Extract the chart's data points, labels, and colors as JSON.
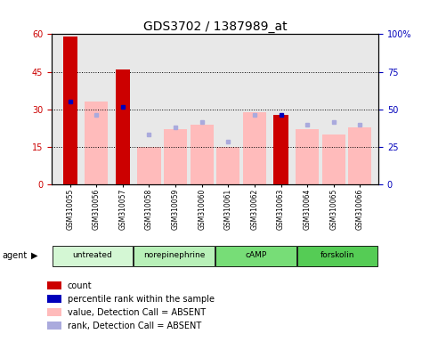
{
  "title": "GDS3702 / 1387989_at",
  "samples": [
    "GSM310055",
    "GSM310056",
    "GSM310057",
    "GSM310058",
    "GSM310059",
    "GSM310060",
    "GSM310061",
    "GSM310062",
    "GSM310063",
    "GSM310064",
    "GSM310065",
    "GSM310066"
  ],
  "count_values": [
    59,
    0,
    46,
    0,
    0,
    0,
    0,
    0,
    28,
    0,
    0,
    0
  ],
  "percentile_values": [
    33,
    0,
    31,
    0,
    0,
    0,
    0,
    0,
    28,
    0,
    0,
    0
  ],
  "value_absent": [
    0,
    33,
    0,
    15,
    22,
    24,
    15,
    29,
    0,
    22,
    20,
    23
  ],
  "rank_absent_left": [
    0,
    28,
    0,
    20,
    23,
    25,
    17,
    28,
    0,
    24,
    25,
    24
  ],
  "groups": [
    {
      "label": "untreated",
      "start": 0,
      "end": 3,
      "color": "#d4f7d4"
    },
    {
      "label": "norepinephrine",
      "start": 3,
      "end": 6,
      "color": "#b8f0b8"
    },
    {
      "label": "cAMP",
      "start": 6,
      "end": 9,
      "color": "#77dd77"
    },
    {
      "label": "forskolin",
      "start": 9,
      "end": 12,
      "color": "#55cc55"
    }
  ],
  "ylim_left": [
    0,
    60
  ],
  "ylim_right": [
    0,
    100
  ],
  "yticks_left": [
    0,
    15,
    30,
    45,
    60
  ],
  "yticks_right": [
    0,
    25,
    50,
    75,
    100
  ],
  "ytick_labels_right": [
    "0",
    "25",
    "50",
    "75",
    "100%"
  ],
  "count_color": "#cc0000",
  "percentile_color": "#0000bb",
  "value_absent_color": "#ffbbbb",
  "rank_absent_color": "#aaaadd",
  "left_tick_color": "#cc0000",
  "right_tick_color": "#0000bb",
  "plot_bg": "#e8e8e8",
  "bar_width": 0.55,
  "agent_label": "agent",
  "legend_items": [
    {
      "color": "#cc0000",
      "shape": "square",
      "label": "count"
    },
    {
      "color": "#0000bb",
      "shape": "square",
      "label": "percentile rank within the sample"
    },
    {
      "color": "#ffbbbb",
      "shape": "square",
      "label": "value, Detection Call = ABSENT"
    },
    {
      "color": "#aaaadd",
      "shape": "square",
      "label": "rank, Detection Call = ABSENT"
    }
  ]
}
